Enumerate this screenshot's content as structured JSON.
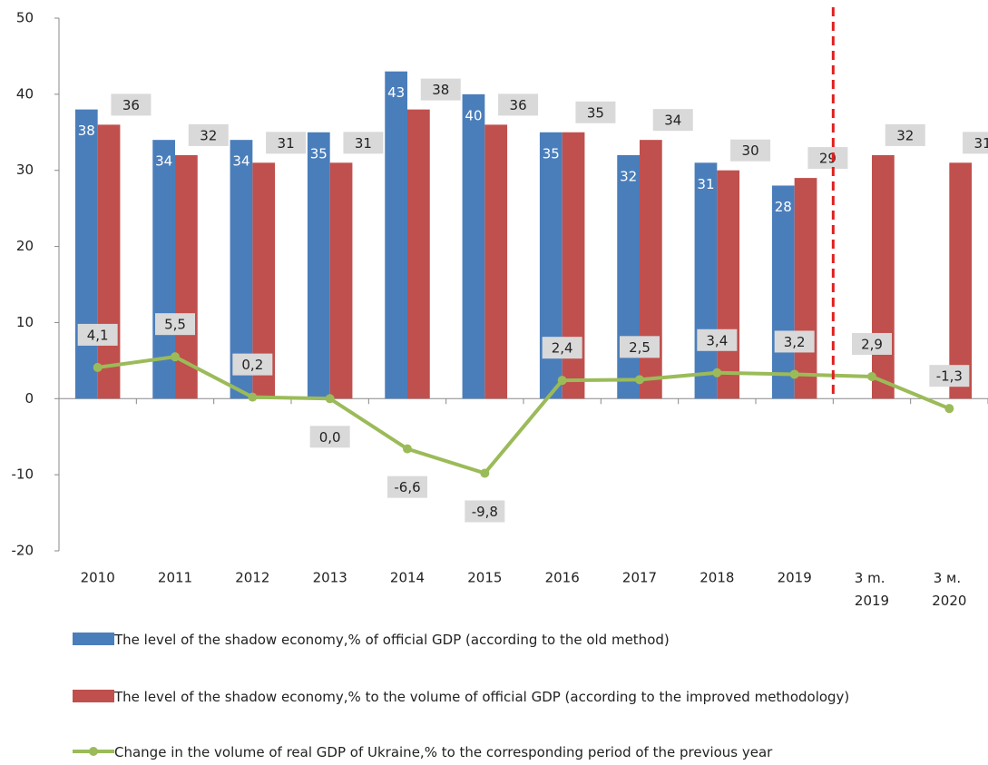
{
  "chart_data": {
    "type": "bar-line",
    "categories": [
      "2010",
      "2011",
      "2012",
      "2013",
      "2014",
      "2015",
      "2016",
      "2017",
      "2018",
      "2019",
      "3 m. 2019",
      "3 м. 2020"
    ],
    "series": [
      {
        "name": "The level of the shadow economy,% of official GDP (according to the old method)",
        "type": "bar",
        "color": "#4a7ebb",
        "values": [
          38,
          34,
          34,
          35,
          43,
          40,
          35,
          32,
          31,
          28,
          null,
          null
        ]
      },
      {
        "name": "The level of the shadow economy,% to the volume of official GDP (according to the improved methodology)",
        "type": "bar",
        "color": "#c0504d",
        "values": [
          36,
          32,
          31,
          31,
          38,
          36,
          35,
          34,
          30,
          29,
          32,
          31
        ]
      },
      {
        "name": "Change in the volume of real GDP of Ukraine,% to the corresponding period of the previous year",
        "type": "line",
        "color": "#9bbb59",
        "values": [
          4.1,
          5.5,
          0.2,
          0.0,
          -6.6,
          -9.8,
          2.4,
          2.5,
          3.4,
          3.2,
          2.9,
          -1.3
        ],
        "value_labels": [
          "4,1",
          "5,5",
          "0,2",
          "0,0",
          "-6,6",
          "-9,8",
          "2,4",
          "2,5",
          "3,4",
          "3,2",
          "2,9",
          "-1,3"
        ]
      }
    ],
    "ylim": [
      -20,
      50
    ],
    "yticks": [
      -20,
      -10,
      0,
      10,
      20,
      30,
      40,
      50
    ],
    "grid": false
  }
}
